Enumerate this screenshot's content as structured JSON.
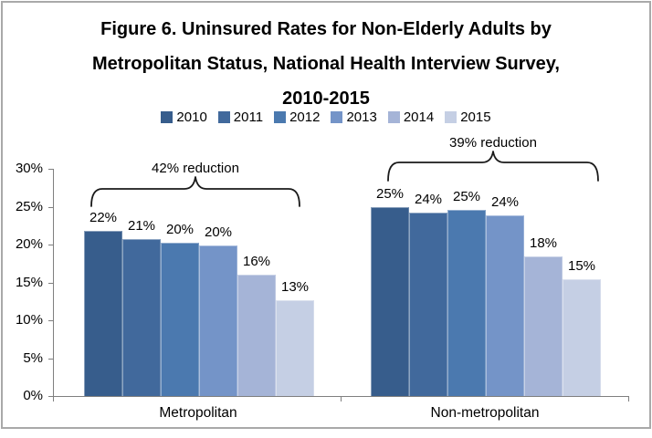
{
  "frame": {
    "border_color": "#a9a9a9",
    "background": "#ffffff"
  },
  "title": {
    "full": "Figure 6. Uninsured Rates for Non-Elderly Adults by Metropolitan Status, National Health Interview Survey, 2010-2015",
    "lines": [
      "Figure 6. Uninsured Rates for Non-Elderly Adults by",
      "Metropolitan Status, National Health Interview Survey,",
      "2010-2015"
    ]
  },
  "chart_data": {
    "type": "bar",
    "title": "Figure 6. Uninsured Rates for Non-Elderly Adults by Metropolitan Status, National Health Interview Survey, 2010-2015",
    "categories": [
      "Metropolitan",
      "Non-metropolitan"
    ],
    "series": [
      {
        "name": "2010",
        "color": "#375d8c",
        "values": [
          22,
          25
        ],
        "plot_values": [
          21.8,
          25.0
        ]
      },
      {
        "name": "2011",
        "color": "#41699c",
        "values": [
          21,
          24
        ],
        "plot_values": [
          20.7,
          24.2
        ]
      },
      {
        "name": "2012",
        "color": "#4b79af",
        "values": [
          20,
          25
        ],
        "plot_values": [
          20.2,
          24.6
        ]
      },
      {
        "name": "2013",
        "color": "#7494c8",
        "values": [
          20,
          24
        ],
        "plot_values": [
          19.9,
          23.8
        ]
      },
      {
        "name": "2014",
        "color": "#a5b4d7",
        "values": [
          16,
          18
        ],
        "plot_values": [
          16.0,
          18.4
        ]
      },
      {
        "name": "2015",
        "color": "#c5cfe4",
        "values": [
          13,
          15
        ],
        "plot_values": [
          12.7,
          15.4
        ]
      }
    ],
    "value_label_suffix": "%",
    "annotations": [
      {
        "text": "42% reduction",
        "category": "Metropolitan"
      },
      {
        "text": "39% reduction",
        "category": "Non-metropolitan"
      }
    ],
    "y_axis": {
      "min": 0,
      "max": 30,
      "step": 5,
      "tick_labels": [
        "0%",
        "5%",
        "10%",
        "15%",
        "20%",
        "25%",
        "30%"
      ]
    },
    "legend_position": "top",
    "grid": false,
    "axis_color": "#7f7f7f",
    "text_color": "#000000"
  }
}
